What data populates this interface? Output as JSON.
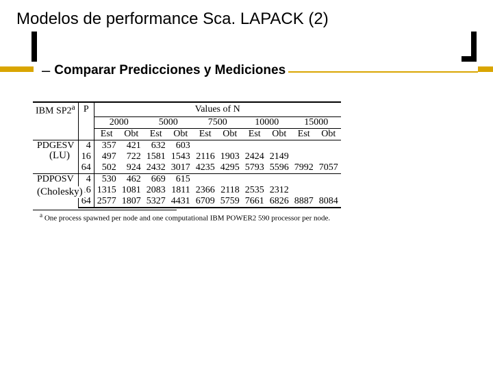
{
  "title": "Modelos de performance Sca. LAPACK (2)",
  "subtitle": "Comparar Predicciones y Mediciones",
  "dash": "–",
  "accent_color": "#d9a500",
  "overlays": {
    "lu": "(LU)",
    "cholesky": "(Cholesky)"
  },
  "table": {
    "head": {
      "corner": "IBM SP2",
      "corner_sup": "a",
      "p_label": "P",
      "values_caption": "Values of N",
      "cols": [
        "2000",
        "5000",
        "7500",
        "10000",
        "15000"
      ],
      "subcols": [
        "Est",
        "Obt"
      ]
    },
    "sections": [
      {
        "label": "PDGESV",
        "rows": [
          {
            "p": "4",
            "cells": [
              "357",
              "421",
              "632",
              "603",
              "",
              "",
              "",
              "",
              "",
              ""
            ]
          },
          {
            "p": "16",
            "cells": [
              "497",
              "722",
              "1581",
              "1543",
              "2116",
              "1903",
              "2424",
              "2149",
              "",
              ""
            ]
          },
          {
            "p": "64",
            "cells": [
              "502",
              "924",
              "2432",
              "3017",
              "4235",
              "4295",
              "5793",
              "5596",
              "7992",
              "7057"
            ]
          }
        ]
      },
      {
        "label": "PDPOSV",
        "rows": [
          {
            "p": "4",
            "cells": [
              "530",
              "462",
              "669",
              "615",
              "",
              "",
              "",
              "",
              "",
              ""
            ]
          },
          {
            "p": "16",
            "cells": [
              "1315",
              "1081",
              "2083",
              "1811",
              "2366",
              "2118",
              "2535",
              "2312",
              "",
              ""
            ]
          },
          {
            "p": "64",
            "cells": [
              "2577",
              "1807",
              "5327",
              "4431",
              "6709",
              "5759",
              "7661",
              "6826",
              "8887",
              "8084"
            ]
          }
        ]
      }
    ],
    "footnote_sup": "a",
    "footnote": "One process spawned per node and one computational IBM POWER2 590 processor per node."
  }
}
